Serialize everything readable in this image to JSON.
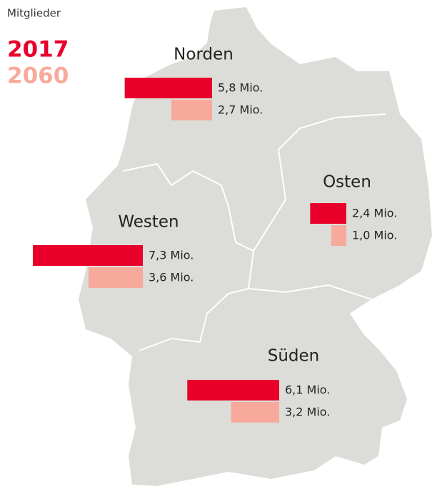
{
  "title": "Mitglieder",
  "legend": [
    {
      "name": "2017",
      "color": "#e8002a"
    },
    {
      "name": "2060",
      "color": "#f7aa9c"
    }
  ],
  "regions": [
    {
      "name": "Norden",
      "values": [
        5.8,
        2.7
      ],
      "value_labels": [
        "5,8 Mio.",
        "2,7 Mio."
      ]
    },
    {
      "name": "Osten",
      "values": [
        2.4,
        1.0
      ],
      "value_labels": [
        "2,4 Mio.",
        "1,0 Mio."
      ]
    },
    {
      "name": "Westen",
      "values": [
        7.3,
        3.6
      ],
      "value_labels": [
        "7,3 Mio.",
        "3,6 Mio."
      ]
    },
    {
      "name": "Süden",
      "values": [
        6.1,
        3.2
      ],
      "value_labels": [
        "6,1 Mio.",
        "3,2 Mio."
      ]
    }
  ]
}
